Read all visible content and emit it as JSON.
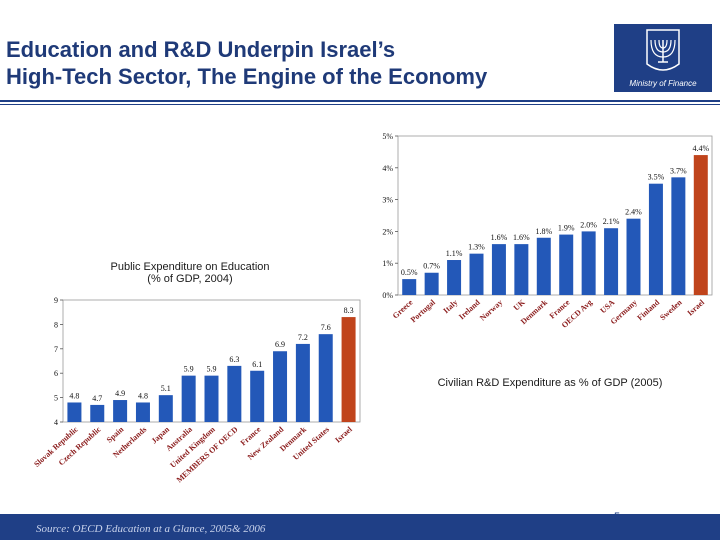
{
  "header": {
    "title_line1": "Education and R&D Underpin Israel’s",
    "title_line2": "High-Tech Sector, The Engine of the Economy",
    "logo_caption": "Ministry of Finance"
  },
  "footer": {
    "source": "Source: OECD Education at a Glance, 2005& 2006",
    "page_number": "5"
  },
  "colors": {
    "title": "#1f3a78",
    "band": "#1f3f86",
    "bar": "#2358b8",
    "highlight": "#c0441c"
  },
  "chart_data": [
    {
      "type": "bar",
      "title_line1": "Public Expenditure on Education",
      "title_line2": "(% of GDP, 2004)",
      "ylim": [
        4,
        9
      ],
      "yticks": [
        "4",
        "5",
        "6",
        "7",
        "8",
        "9"
      ],
      "categories": [
        "Slovak Republic",
        "Czech Republic",
        "Spain",
        "Netherlands",
        "Japan",
        "Australia",
        "United Kingdom",
        "MEMBERS OF OECD",
        "France",
        "New Zealand",
        "Denmark",
        "United States",
        "Israel"
      ],
      "values": [
        4.8,
        4.7,
        4.9,
        4.8,
        5.1,
        5.9,
        5.9,
        6.3,
        6.1,
        6.9,
        7.2,
        7.6,
        8.3
      ],
      "value_labels": [
        "4.8",
        "4.7",
        "4.9",
        "4.8",
        "5.1",
        "5.9",
        "5.9",
        "6.3",
        "6.1",
        "6.9",
        "7.2",
        "7.6",
        "8.3"
      ],
      "highlight": "Israel"
    },
    {
      "type": "bar",
      "title": "Civilian R&D Expenditure as % of GDP (2005)",
      "ylim": [
        0,
        5
      ],
      "yticks": [
        "0%",
        "1%",
        "2%",
        "3%",
        "4%",
        "5%"
      ],
      "categories": [
        "Greece",
        "Portugal",
        "Italy",
        "Ireland",
        "Norway",
        "UK",
        "Denmark",
        "France",
        "OECD Avg",
        "USA",
        "Germany",
        "Finland",
        "Sweden",
        "Israel"
      ],
      "values": [
        0.5,
        0.7,
        1.1,
        1.3,
        1.6,
        1.6,
        1.8,
        1.9,
        2.0,
        2.1,
        2.4,
        3.5,
        3.7,
        4.4
      ],
      "value_labels": [
        "0.5%",
        "0.7%",
        "1.1%",
        "1.3%",
        "1.6%",
        "1.6%",
        "1.8%",
        "1.9%",
        "2.0%",
        "2.1%",
        "2.4%",
        "3.5%",
        "3.7%",
        "4.4%"
      ],
      "highlight": "Israel"
    }
  ]
}
